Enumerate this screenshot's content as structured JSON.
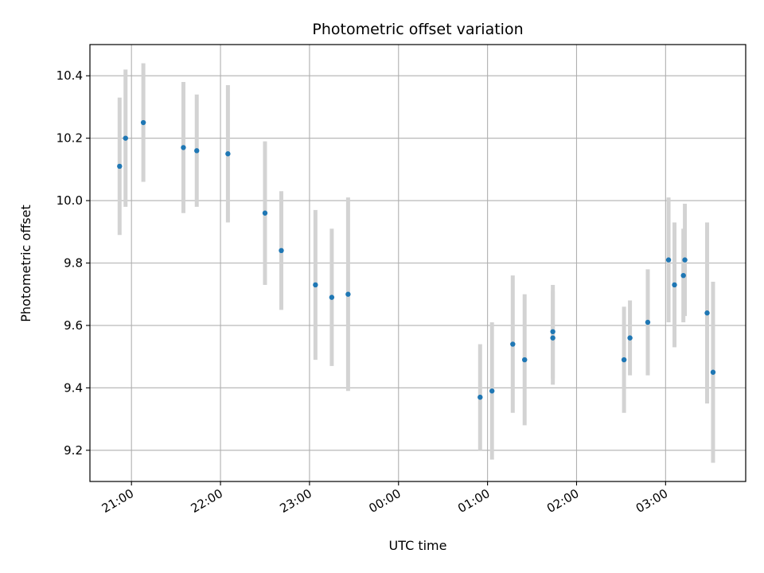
{
  "chart_data": {
    "type": "scatter",
    "title": "Photometric offset variation",
    "xlabel": "UTC time",
    "ylabel": "Photometric offset",
    "xlim": [
      "20:32",
      "03:54"
    ],
    "ylim": [
      9.1,
      10.5
    ],
    "grid": true,
    "x_ticks": [
      "21:00",
      "22:00",
      "23:00",
      "00:00",
      "01:00",
      "02:00",
      "03:00"
    ],
    "y_ticks": [
      "9.2",
      "9.4",
      "9.6",
      "9.8",
      "10.0",
      "10.2",
      "10.4"
    ],
    "marker_color": "#1f77b4",
    "errorbar_color": "#d3d3d3",
    "points": [
      {
        "t": "20:52",
        "y": 10.11,
        "err": 0.22
      },
      {
        "t": "20:56",
        "y": 10.2,
        "err": 0.22
      },
      {
        "t": "21:08",
        "y": 10.25,
        "err": 0.19
      },
      {
        "t": "21:35",
        "y": 10.17,
        "err": 0.21
      },
      {
        "t": "21:44",
        "y": 10.16,
        "err": 0.18
      },
      {
        "t": "22:05",
        "y": 10.15,
        "err": 0.22
      },
      {
        "t": "22:30",
        "y": 9.96,
        "err": 0.23
      },
      {
        "t": "22:41",
        "y": 9.84,
        "err": 0.19
      },
      {
        "t": "23:04",
        "y": 9.73,
        "err": 0.24
      },
      {
        "t": "23:15",
        "y": 9.69,
        "err": 0.22
      },
      {
        "t": "23:26",
        "y": 9.7,
        "err": 0.31
      },
      {
        "t": "00:55",
        "y": 9.37,
        "err": 0.17
      },
      {
        "t": "01:03",
        "y": 9.39,
        "err": 0.22
      },
      {
        "t": "01:17",
        "y": 9.54,
        "err": 0.22
      },
      {
        "t": "01:25",
        "y": 9.49,
        "err": 0.21
      },
      {
        "t": "01:44",
        "y": 9.58,
        "err": 0.15
      },
      {
        "t": "01:44",
        "y": 9.56,
        "err": 0.15
      },
      {
        "t": "02:32",
        "y": 9.49,
        "err": 0.17
      },
      {
        "t": "02:36",
        "y": 9.56,
        "err": 0.12
      },
      {
        "t": "02:48",
        "y": 9.61,
        "err": 0.17
      },
      {
        "t": "03:02",
        "y": 9.81,
        "err": 0.2
      },
      {
        "t": "03:06",
        "y": 9.73,
        "err": 0.2
      },
      {
        "t": "03:12",
        "y": 9.76,
        "err": 0.15
      },
      {
        "t": "03:13",
        "y": 9.81,
        "err": 0.18
      },
      {
        "t": "03:28",
        "y": 9.64,
        "err": 0.29
      },
      {
        "t": "03:32",
        "y": 9.45,
        "err": 0.29
      }
    ]
  }
}
